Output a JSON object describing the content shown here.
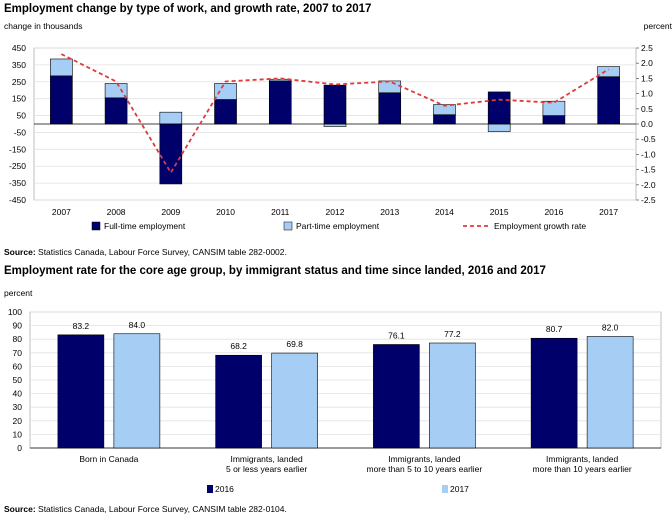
{
  "chart_data": [
    {
      "type": "bar",
      "title": "Employment change by type of work, and growth rate, 2007 to 2017",
      "ylabel": "change in thousands",
      "y2label": "percent",
      "ylim": [
        -450,
        450
      ],
      "yticks": [
        "450",
        "350",
        "250",
        "150",
        "50",
        "-50",
        "-150",
        "-250",
        "-350",
        "-450"
      ],
      "y2lim": [
        -2.5,
        2.5
      ],
      "y2ticks": [
        "2.5",
        "2.0",
        "1.5",
        "1.0",
        "0.5",
        "0.0",
        "-0.5",
        "-1.0",
        "-1.5",
        "-2.0",
        "-2.5"
      ],
      "categories": [
        "2007",
        "2008",
        "2009",
        "2010",
        "2011",
        "2012",
        "2013",
        "2014",
        "2015",
        "2016",
        "2017"
      ],
      "stacked": true,
      "series": [
        {
          "name": "Full-time employment",
          "color": "#00006b",
          "values": [
            285,
            155,
            -355,
            145,
            255,
            230,
            185,
            55,
            190,
            50,
            280
          ]
        },
        {
          "name": "Part-time employment",
          "color": "#a6cef5",
          "values": [
            100,
            85,
            70,
            95,
            10,
            -15,
            70,
            60,
            -45,
            85,
            60
          ]
        }
      ],
      "line_series": {
        "name": "Employment growth rate",
        "color": "#e03a3a",
        "axis": "right",
        "values": [
          2.3,
          1.4,
          -1.6,
          1.4,
          1.5,
          1.3,
          1.4,
          0.6,
          0.8,
          0.7,
          1.8
        ]
      },
      "grid": true,
      "legend": "bottom",
      "source_label": "Source:",
      "source": "Statistics Canada, Labour Force Survey, CANSIM table 282-0002."
    },
    {
      "type": "bar",
      "title": "Employment rate for the core age group, by immigrant status and time since landed, 2016 and 2017",
      "ylabel": "percent",
      "ylim": [
        0,
        100
      ],
      "yticks": [
        "100",
        "90",
        "80",
        "70",
        "60",
        "50",
        "40",
        "30",
        "20",
        "10",
        "0"
      ],
      "categories": [
        [
          "Born in Canada"
        ],
        [
          "Immigrants, landed",
          "5 or less years earlier"
        ],
        [
          "Immigrants, landed",
          "more than 5 to 10 years earlier"
        ],
        [
          "Immigrants, landed",
          "more than 10 years earlier"
        ]
      ],
      "series": [
        {
          "name": "2016",
          "color": "#00006b",
          "values": [
            83.2,
            68.2,
            76.1,
            80.7
          ],
          "labels": [
            "83.2",
            "68.2",
            "76.1",
            "80.7"
          ]
        },
        {
          "name": "2017",
          "color": "#a6cef5",
          "values": [
            84.0,
            69.8,
            77.2,
            82.0
          ],
          "labels": [
            "84.0",
            "69.8",
            "77.2",
            "82.0"
          ]
        }
      ],
      "grid": true,
      "legend": "bottom",
      "source_label": "Source:",
      "source": "Statistics Canada, Labour Force Survey, CANSIM table 282-0104."
    }
  ]
}
